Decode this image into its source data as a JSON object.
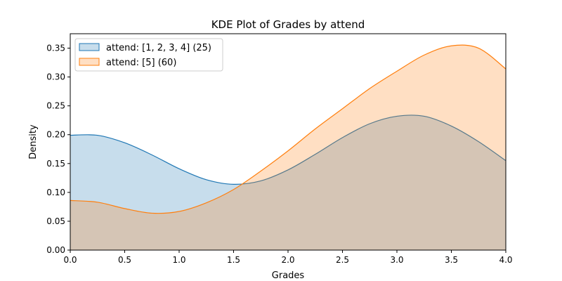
{
  "chart_data": {
    "type": "area",
    "title": "KDE Plot of Grades by attend",
    "xlabel": "Grades",
    "ylabel": "Density",
    "xlim": [
      0,
      4
    ],
    "ylim": [
      0,
      0.375
    ],
    "xticks": [
      "0.0",
      "0.5",
      "1.0",
      "1.5",
      "2.0",
      "2.5",
      "3.0",
      "3.5",
      "4.0"
    ],
    "yticks": [
      "0.00",
      "0.05",
      "0.10",
      "0.15",
      "0.20",
      "0.25",
      "0.30",
      "0.35"
    ],
    "grid": false,
    "legend_position": "top-left",
    "x": [
      0,
      0.25,
      0.5,
      0.75,
      1.0,
      1.25,
      1.5,
      1.75,
      2.0,
      2.25,
      2.5,
      2.75,
      3.0,
      3.25,
      3.5,
      3.75,
      4.0
    ],
    "series": [
      {
        "name": "attend: [1, 2, 3, 4] (25)",
        "color": "#1f77b4",
        "values": [
          0.199,
          0.199,
          0.186,
          0.165,
          0.141,
          0.122,
          0.114,
          0.12,
          0.139,
          0.166,
          0.195,
          0.219,
          0.232,
          0.232,
          0.215,
          0.188,
          0.155
        ]
      },
      {
        "name": "attend: [5] (60)",
        "color": "#ff7f0e",
        "values": [
          0.086,
          0.083,
          0.072,
          0.064,
          0.067,
          0.082,
          0.105,
          0.137,
          0.172,
          0.21,
          0.245,
          0.28,
          0.31,
          0.338,
          0.354,
          0.35,
          0.314
        ]
      }
    ]
  }
}
